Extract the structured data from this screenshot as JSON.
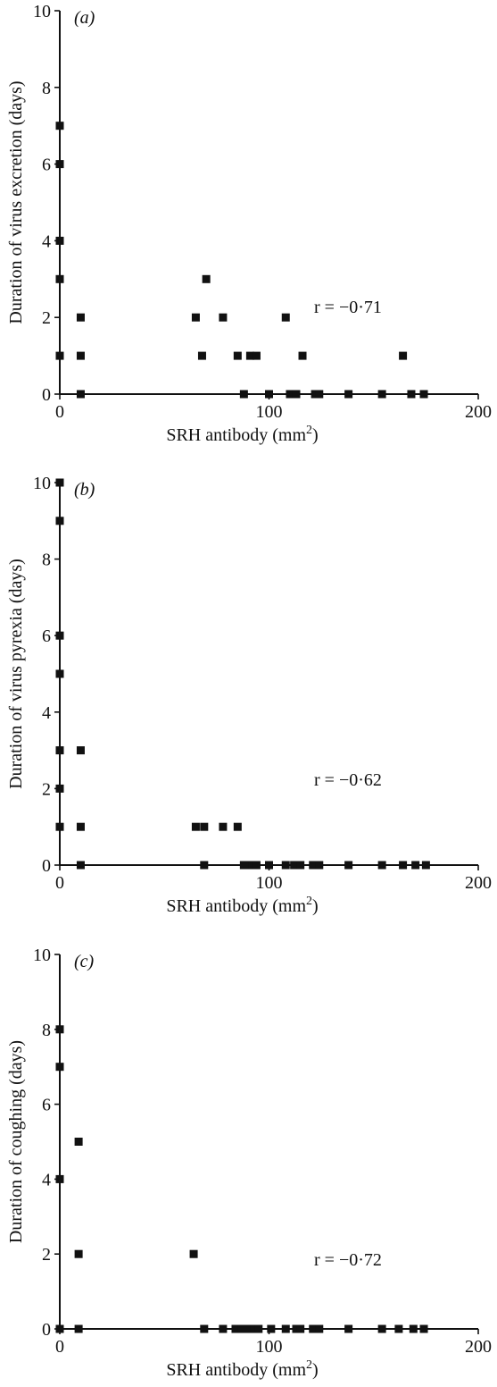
{
  "chart_data": [
    {
      "type": "scatter",
      "panel_label": "(a)",
      "xlabel": "SRH antibody (mm²)",
      "ylabel": "Duration of virus excretion (days)",
      "xlim": [
        0,
        200
      ],
      "ylim": [
        0,
        10
      ],
      "x_ticks": [
        0,
        100,
        200
      ],
      "y_ticks": [
        0,
        2,
        4,
        6,
        8,
        10
      ],
      "annotation": "r = −0·71",
      "points": [
        {
          "x": 0,
          "y": 7
        },
        {
          "x": 0,
          "y": 6
        },
        {
          "x": 0,
          "y": 4
        },
        {
          "x": 0,
          "y": 3
        },
        {
          "x": 0,
          "y": 1
        },
        {
          "x": 10,
          "y": 2
        },
        {
          "x": 10,
          "y": 1
        },
        {
          "x": 10,
          "y": 0
        },
        {
          "x": 65,
          "y": 2
        },
        {
          "x": 68,
          "y": 1
        },
        {
          "x": 70,
          "y": 3
        },
        {
          "x": 78,
          "y": 2
        },
        {
          "x": 85,
          "y": 1
        },
        {
          "x": 88,
          "y": 0
        },
        {
          "x": 91,
          "y": 1
        },
        {
          "x": 94,
          "y": 1
        },
        {
          "x": 100,
          "y": 0
        },
        {
          "x": 108,
          "y": 2
        },
        {
          "x": 110,
          "y": 0
        },
        {
          "x": 113,
          "y": 0
        },
        {
          "x": 116,
          "y": 1
        },
        {
          "x": 122,
          "y": 0
        },
        {
          "x": 124,
          "y": 0
        },
        {
          "x": 138,
          "y": 0
        },
        {
          "x": 154,
          "y": 0
        },
        {
          "x": 164,
          "y": 1
        },
        {
          "x": 168,
          "y": 0
        },
        {
          "x": 174,
          "y": 0
        }
      ]
    },
    {
      "type": "scatter",
      "panel_label": "(b)",
      "xlabel": "SRH antibody (mm²)",
      "ylabel": "Duration of virus pyrexia (days)",
      "xlim": [
        0,
        200
      ],
      "ylim": [
        0,
        10
      ],
      "x_ticks": [
        0,
        100,
        200
      ],
      "y_ticks": [
        0,
        2,
        4,
        6,
        8,
        10
      ],
      "annotation": "r = −0·62",
      "points": [
        {
          "x": 0,
          "y": 10
        },
        {
          "x": 0,
          "y": 9
        },
        {
          "x": 0,
          "y": 6
        },
        {
          "x": 0,
          "y": 5
        },
        {
          "x": 0,
          "y": 3
        },
        {
          "x": 0,
          "y": 2
        },
        {
          "x": 0,
          "y": 1
        },
        {
          "x": 10,
          "y": 3
        },
        {
          "x": 10,
          "y": 1
        },
        {
          "x": 10,
          "y": 0
        },
        {
          "x": 65,
          "y": 1
        },
        {
          "x": 69,
          "y": 1
        },
        {
          "x": 78,
          "y": 1
        },
        {
          "x": 85,
          "y": 1
        },
        {
          "x": 69,
          "y": 0
        },
        {
          "x": 88,
          "y": 0
        },
        {
          "x": 90,
          "y": 0
        },
        {
          "x": 92,
          "y": 0
        },
        {
          "x": 94,
          "y": 0
        },
        {
          "x": 100,
          "y": 0
        },
        {
          "x": 108,
          "y": 0
        },
        {
          "x": 112,
          "y": 0
        },
        {
          "x": 115,
          "y": 0
        },
        {
          "x": 121,
          "y": 0
        },
        {
          "x": 124,
          "y": 0
        },
        {
          "x": 138,
          "y": 0
        },
        {
          "x": 154,
          "y": 0
        },
        {
          "x": 164,
          "y": 0
        },
        {
          "x": 170,
          "y": 0
        },
        {
          "x": 175,
          "y": 0
        }
      ]
    },
    {
      "type": "scatter",
      "panel_label": "(c)",
      "xlabel": "SRH antibody (mm²)",
      "ylabel": "Duration of coughing (days)",
      "xlim": [
        0,
        200
      ],
      "ylim": [
        0,
        10
      ],
      "x_ticks": [
        0,
        100,
        200
      ],
      "y_ticks": [
        0,
        2,
        4,
        6,
        8,
        10
      ],
      "annotation": "r = −0·72",
      "points": [
        {
          "x": 0,
          "y": 8
        },
        {
          "x": 0,
          "y": 7
        },
        {
          "x": 0,
          "y": 4
        },
        {
          "x": 0,
          "y": 0
        },
        {
          "x": 9,
          "y": 5
        },
        {
          "x": 9,
          "y": 2
        },
        {
          "x": 9,
          "y": 0
        },
        {
          "x": 64,
          "y": 2
        },
        {
          "x": 69,
          "y": 0
        },
        {
          "x": 78,
          "y": 0
        },
        {
          "x": 84,
          "y": 0
        },
        {
          "x": 87,
          "y": 0
        },
        {
          "x": 90,
          "y": 0
        },
        {
          "x": 93,
          "y": 0
        },
        {
          "x": 95,
          "y": 0
        },
        {
          "x": 101,
          "y": 0
        },
        {
          "x": 108,
          "y": 0
        },
        {
          "x": 113,
          "y": 0
        },
        {
          "x": 115,
          "y": 0
        },
        {
          "x": 121,
          "y": 0
        },
        {
          "x": 124,
          "y": 0
        },
        {
          "x": 138,
          "y": 0
        },
        {
          "x": 154,
          "y": 0
        },
        {
          "x": 162,
          "y": 0
        },
        {
          "x": 169,
          "y": 0
        },
        {
          "x": 174,
          "y": 0
        }
      ]
    }
  ]
}
